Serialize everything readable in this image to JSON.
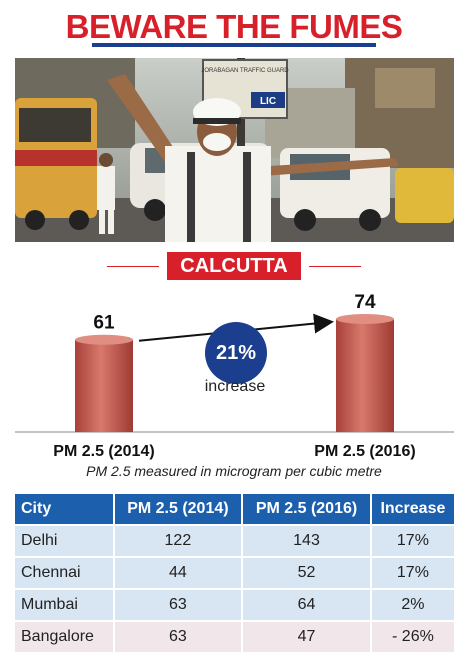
{
  "title": "BEWARE THE FUMES",
  "photo": {
    "signs": [
      "JORABAGAN TRAFFIC GUARD",
      "LIC"
    ]
  },
  "city_tag": "CALCUTTA",
  "increase": {
    "value": "21%",
    "label": "increase"
  },
  "note": "PM 2.5 measured in microgram per cubic metre",
  "colors": {
    "accent_red": "#d8202a",
    "navy": "#1b3f8e",
    "table_header": "#1b5fad",
    "bar": "#c25a4c"
  },
  "chart_data": {
    "type": "bar",
    "categories": [
      "PM 2.5 (2014)",
      "PM 2.5 (2016)"
    ],
    "values": [
      61,
      74
    ],
    "title": "CALCUTTA",
    "xlabel": "",
    "ylabel": ""
  },
  "table": {
    "headers": [
      "City",
      "PM 2.5 (2014)",
      "PM 2.5 (2016)",
      "Increase"
    ],
    "rows": [
      [
        "Delhi",
        "122",
        "143",
        "17%"
      ],
      [
        "Chennai",
        "44",
        "52",
        "17%"
      ],
      [
        "Mumbai",
        "63",
        "64",
        "2%"
      ],
      [
        "Bangalore",
        "63",
        "47",
        "- 26%"
      ]
    ]
  }
}
